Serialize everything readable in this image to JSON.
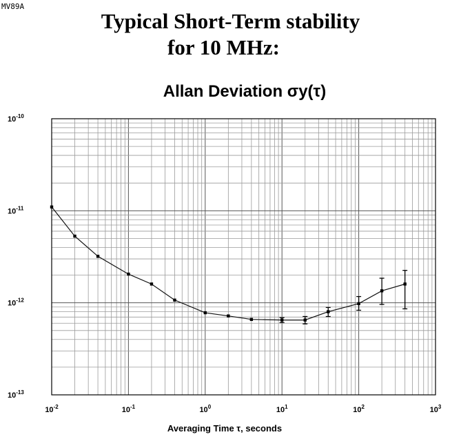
{
  "header": {
    "model": "MV89A",
    "title_line1": "Typical Short-Term stability",
    "title_line2": "for 10 MHz:"
  },
  "chart_data": {
    "type": "line",
    "title": "Allan Deviation σy(τ)",
    "xlabel": "Averaging Time τ, seconds",
    "ylabel": "",
    "x_scale": "log",
    "y_scale": "log",
    "xlim": [
      0.01,
      1000
    ],
    "ylim": [
      1e-13,
      1e-10
    ],
    "grid": true,
    "x_ticks": [
      {
        "base": "10",
        "exp": "-2",
        "value": 0.01
      },
      {
        "base": "10",
        "exp": "-1",
        "value": 0.1
      },
      {
        "base": "10",
        "exp": "0",
        "value": 1
      },
      {
        "base": "10",
        "exp": "1",
        "value": 10
      },
      {
        "base": "10",
        "exp": "2",
        "value": 100
      },
      {
        "base": "10",
        "exp": "3",
        "value": 1000
      }
    ],
    "y_ticks": [
      {
        "base": "10",
        "exp": "-10",
        "value": 1e-10
      },
      {
        "base": "10",
        "exp": "-11",
        "value": 1e-11
      },
      {
        "base": "10",
        "exp": "-12",
        "value": 1e-12
      },
      {
        "base": "10",
        "exp": "-13",
        "value": 1e-13
      }
    ],
    "series": [
      {
        "x": [
          0.01,
          0.02,
          0.04,
          0.1,
          0.2,
          0.4,
          1,
          2,
          4,
          10,
          20,
          40,
          100,
          200,
          400
        ],
        "y": [
          1.1e-11,
          5.3e-12,
          3.2e-12,
          2.05e-12,
          1.6e-12,
          1.07e-12,
          7.8e-13,
          7.2e-13,
          6.6e-13,
          6.5e-13,
          6.5e-13,
          8e-13,
          9.8e-13,
          1.35e-12,
          1.6e-12
        ],
        "y_low": [
          null,
          null,
          null,
          null,
          null,
          null,
          null,
          null,
          null,
          6.1e-13,
          5.9e-13,
          7.1e-13,
          8.3e-13,
          9.6e-13,
          8.6e-13
        ],
        "y_high": [
          null,
          null,
          null,
          null,
          null,
          null,
          null,
          null,
          null,
          6.9e-13,
          7.1e-13,
          8.9e-13,
          1.17e-12,
          1.85e-12,
          2.25e-12
        ]
      }
    ]
  }
}
